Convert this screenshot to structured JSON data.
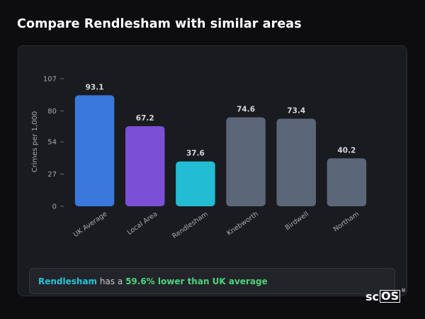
{
  "title": "Compare Rendlesham with similar areas",
  "chart_data": {
    "type": "bar",
    "categories": [
      "UK Average",
      "Local Area",
      "Rendlesham",
      "Knebworth",
      "Birdwell",
      "Northam"
    ],
    "values": [
      93.1,
      67.2,
      37.6,
      74.6,
      73.4,
      40.2
    ],
    "value_labels": [
      "93.1",
      "67.2",
      "37.6",
      "74.6",
      "73.4",
      "40.2"
    ],
    "colors": [
      "#3a78dd",
      "#7b4fd6",
      "#22bcd3",
      "#5b6678",
      "#5b6678",
      "#5b6678"
    ],
    "ylabel": "Crimes per 1,000",
    "yticks": [
      "0",
      "27",
      "54",
      "80",
      "107"
    ],
    "ytick_values": [
      0,
      27,
      54,
      80,
      107
    ],
    "ylim": [
      0,
      107
    ]
  },
  "summary": {
    "area": "Rendlesham",
    "middle": " has a ",
    "stat": "59.6% lower than UK average"
  },
  "logo": {
    "sc": "sc",
    "os": "OS",
    "reg": "®"
  }
}
